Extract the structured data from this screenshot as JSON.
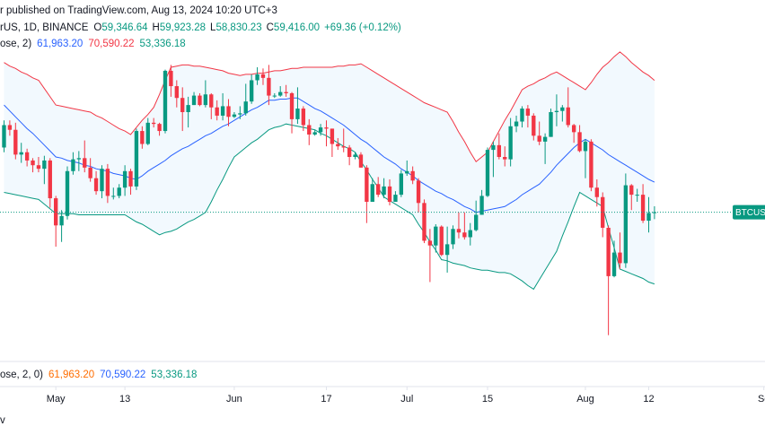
{
  "chart_data": {
    "type": "candlestick",
    "header": {
      "published": "r published on TradingView.com, Aug 13, 2024 10:20 UTC+3",
      "symbol": "rUS, 1D, BINANCE",
      "ohlc": [
        {
          "key": "O",
          "label": "59,346.64"
        },
        {
          "key": "H",
          "label": "59,923.28"
        },
        {
          "key": "L",
          "label": "58,830.23"
        },
        {
          "key": "C",
          "label": "59,416.00"
        }
      ],
      "change": "+69.36 (+0.12%)",
      "value_color": "#089981"
    },
    "indicator": {
      "text": "ose, 2)",
      "values": [
        {
          "label": "61,963.20",
          "color": "#2962ff"
        },
        {
          "label": "70,590.22",
          "color": "#f23645"
        },
        {
          "label": "53,336.18",
          "color": "#089981"
        }
      ]
    },
    "pane_label": {
      "text": "ose, 2, 0)",
      "values": [
        {
          "label": "61,963.20",
          "color": "#ff6d00"
        },
        {
          "label": "70,590.22",
          "color": "#2962ff"
        },
        {
          "label": "53,336.18",
          "color": "#089981"
        }
      ]
    },
    "price_tag": "BTCUSD",
    "footer": "v",
    "up_color": "#089981",
    "down_color": "#f23645",
    "xlim": [
      -0.7,
      132.2
    ],
    "ylim": [
      47000,
      77400
    ],
    "xticks": [
      {
        "value": 9,
        "label": "May"
      },
      {
        "value": 21,
        "label": "13"
      },
      {
        "value": 40,
        "label": "Jun"
      },
      {
        "value": 56,
        "label": "17"
      },
      {
        "value": 70,
        "label": "Jul"
      },
      {
        "value": 84,
        "label": "15"
      },
      {
        "value": 101,
        "label": "Aug"
      },
      {
        "value": 112,
        "label": "12"
      },
      {
        "value": 132,
        "label": "Se"
      }
    ],
    "open": [
      64900,
      66800,
      66400,
      64300,
      64500,
      63800,
      63400,
      63100,
      63800,
      60600,
      58300,
      59100,
      62900,
      63900,
      64000,
      63200,
      62300,
      61200,
      63100,
      60800,
      60800,
      61500,
      62900,
      61600,
      66300,
      65200,
      67000,
      66900,
      66300,
      71400,
      70100,
      69100,
      67900,
      68500,
      69300,
      68500,
      69400,
      68300,
      67600,
      68400,
      67500,
      67700,
      67800,
      68800,
      70600,
      71100,
      70800,
      69300,
      69300,
      69600,
      69500,
      67300,
      68200,
      66800,
      66000,
      66200,
      66600,
      66500,
      65200,
      65000,
      64900,
      64100,
      64300,
      63200,
      60300,
      61800,
      60900,
      61600,
      60300,
      60900,
      62700,
      62900,
      62100,
      60200,
      57000,
      56600,
      58200,
      55800,
      56700,
      58000,
      57700,
      57300,
      57900,
      59200,
      60800,
      64700,
      65100,
      64100,
      63900,
      66700,
      67100,
      68200,
      67600,
      65900,
      65400,
      65800,
      67900,
      68000,
      68300,
      66800,
      66200,
      64600,
      65400,
      61500,
      60700,
      58100,
      54000,
      56000,
      55100,
      61700,
      60900,
      60900,
      58700,
      59346.64
    ],
    "high": [
      67200,
      67200,
      67000,
      65300,
      64800,
      64000,
      64100,
      64200,
      64000,
      60800,
      59600,
      63300,
      64500,
      64600,
      65500,
      64000,
      62900,
      63400,
      63500,
      61500,
      61800,
      63400,
      63100,
      66500,
      66700,
      67400,
      67400,
      67000,
      71500,
      71900,
      70600,
      70000,
      69200,
      69600,
      69500,
      70600,
      69500,
      68900,
      69500,
      69000,
      67900,
      68400,
      70300,
      71100,
      71700,
      71600,
      71900,
      69500,
      70100,
      70200,
      69600,
      70000,
      68400,
      67300,
      66400,
      66900,
      67200,
      66500,
      65700,
      66500,
      65100,
      64500,
      64500,
      63400,
      62300,
      62400,
      62300,
      62200,
      61200,
      63000,
      63800,
      63300,
      62300,
      60500,
      58000,
      58400,
      58300,
      58200,
      58300,
      59400,
      59400,
      58500,
      60400,
      61300,
      64900,
      65400,
      66100,
      65000,
      67400,
      67600,
      68400,
      68500,
      67800,
      67100,
      66100,
      68200,
      69400,
      68500,
      70000,
      66900,
      66800,
      65600,
      65600,
      62200,
      61100,
      58300,
      57000,
      57700,
      62700,
      61800,
      61400,
      61800,
      60700,
      59923.28
    ],
    "low": [
      64500,
      65900,
      63900,
      63600,
      63300,
      62800,
      62800,
      61800,
      59800,
      56500,
      56900,
      58800,
      62600,
      62900,
      62800,
      62000,
      60900,
      60600,
      60200,
      60500,
      60600,
      60800,
      60900,
      61300,
      64800,
      65100,
      66600,
      65900,
      66100,
      69200,
      68300,
      66300,
      66600,
      68500,
      68400,
      68300,
      67300,
      67200,
      67200,
      66700,
      67400,
      67300,
      67600,
      68600,
      70200,
      70200,
      68500,
      69100,
      69200,
      69200,
      66100,
      66900,
      66300,
      65100,
      65900,
      65900,
      65000,
      64100,
      64700,
      64500,
      63400,
      63900,
      63200,
      58500,
      60300,
      60700,
      60600,
      60000,
      60300,
      60700,
      62500,
      61800,
      59400,
      56800,
      53500,
      56000,
      55700,
      54300,
      56300,
      57200,
      57100,
      56600,
      57800,
      59200,
      60700,
      62400,
      63900,
      63300,
      63300,
      66200,
      66600,
      66600,
      65500,
      65100,
      63500,
      65800,
      66700,
      67100,
      66600,
      65300,
      64500,
      62300,
      61200,
      59900,
      57300,
      49000,
      53900,
      54600,
      54700,
      59600,
      60300,
      58500,
      57700,
      58830.23
    ],
    "close": [
      66800,
      66400,
      64300,
      64500,
      63800,
      63400,
      63100,
      63800,
      60600,
      58300,
      59100,
      62900,
      63900,
      64000,
      63200,
      62300,
      61200,
      63100,
      60800,
      60800,
      61500,
      62900,
      61600,
      66300,
      65200,
      67000,
      66900,
      66300,
      71400,
      70100,
      69100,
      67900,
      68500,
      69300,
      68500,
      69400,
      68300,
      67600,
      68400,
      67500,
      67700,
      67800,
      68800,
      70600,
      71100,
      70800,
      69300,
      69300,
      69600,
      69500,
      67300,
      68200,
      66800,
      66000,
      66200,
      66600,
      66500,
      65200,
      65000,
      64900,
      64100,
      64300,
      63200,
      60300,
      61800,
      60900,
      61600,
      60300,
      60900,
      62700,
      62900,
      62100,
      60200,
      57000,
      56600,
      58200,
      55800,
      56700,
      58000,
      57700,
      57300,
      57900,
      59200,
      60800,
      64700,
      65100,
      64100,
      63900,
      66700,
      67100,
      68200,
      67600,
      65900,
      65400,
      65800,
      67900,
      68000,
      68300,
      66800,
      66200,
      64600,
      65400,
      61500,
      60700,
      58100,
      54000,
      56000,
      55100,
      61700,
      60900,
      60900,
      58700,
      59346.64,
      59416
    ],
    "band_fill": "#2196f3",
    "bands": [
      {
        "color": "#f23645",
        "values": [
          72100,
          71800,
          71600,
          71300,
          71100,
          70800,
          70600,
          69900,
          69200,
          68500,
          68400,
          68300,
          68200,
          68100,
          68000,
          67900,
          67600,
          67400,
          67100,
          66800,
          66500,
          66300,
          66000,
          66600,
          67200,
          67700,
          68300,
          69400,
          70600,
          71700,
          71800,
          71900,
          71900,
          71800,
          71800,
          71700,
          71600,
          71500,
          71400,
          71200,
          71100,
          71000,
          71100,
          71100,
          71200,
          71200,
          71300,
          71400,
          71400,
          71500,
          71600,
          71600,
          71700,
          71700,
          71700,
          71700,
          71700,
          71700,
          71800,
          71800,
          71900,
          71900,
          72000,
          71700,
          71400,
          71100,
          70800,
          70500,
          70200,
          69900,
          69600,
          69300,
          69000,
          68700,
          68500,
          68300,
          68100,
          67900,
          67100,
          66200,
          65400,
          64500,
          63700,
          64100,
          64500,
          65400,
          66300,
          67200,
          68000,
          68900,
          69800,
          70100,
          70300,
          70600,
          70800,
          71100,
          71300,
          71000,
          70700,
          70400,
          70100,
          69800,
          70400,
          71100,
          71700,
          72100,
          72600,
          73000,
          72600,
          72100,
          71700,
          71300,
          71000,
          70590.22
        ]
      },
      {
        "color": "#2962ff",
        "values": [
          68500,
          68000,
          67500,
          67000,
          66500,
          66100,
          65600,
          65100,
          64600,
          64100,
          64000,
          63800,
          63700,
          63600,
          63400,
          63300,
          63100,
          63000,
          62900,
          62700,
          62600,
          62500,
          62300,
          62200,
          62500,
          62900,
          63200,
          63500,
          63800,
          64200,
          64500,
          64800,
          65000,
          65300,
          65600,
          65900,
          66100,
          66400,
          66700,
          66900,
          67200,
          67500,
          67800,
          68100,
          68300,
          68600,
          68900,
          68900,
          69000,
          69000,
          69100,
          69100,
          68800,
          68500,
          68200,
          68000,
          67700,
          67400,
          67100,
          66800,
          66400,
          66000,
          65600,
          65300,
          64900,
          64500,
          64100,
          63800,
          63500,
          63100,
          62800,
          62500,
          62100,
          61800,
          61500,
          61200,
          61000,
          60700,
          60500,
          60200,
          59900,
          59700,
          59400,
          59500,
          59600,
          59700,
          59800,
          59900,
          60200,
          60500,
          60900,
          61200,
          61500,
          61800,
          62300,
          62800,
          63400,
          63900,
          64400,
          64900,
          65300,
          65600,
          65300,
          65000,
          64700,
          64300,
          64000,
          63700,
          63400,
          63100,
          62800,
          62500,
          62200,
          61963.2
        ]
      },
      {
        "color": "#089981",
        "values": [
          61100,
          61000,
          60900,
          60800,
          60700,
          60600,
          60500,
          60100,
          59700,
          59300,
          59300,
          59300,
          59300,
          59200,
          59200,
          59200,
          59200,
          59200,
          59200,
          59200,
          59200,
          59200,
          58900,
          58600,
          58400,
          58100,
          57800,
          57500,
          57700,
          57800,
          58000,
          58300,
          58600,
          58800,
          59100,
          59400,
          60300,
          61300,
          62200,
          63200,
          64100,
          64500,
          64900,
          65300,
          65600,
          66000,
          66400,
          66600,
          66700,
          66900,
          66800,
          66700,
          66600,
          66500,
          66400,
          66100,
          65900,
          65600,
          65300,
          65000,
          64800,
          64500,
          63700,
          63000,
          62200,
          61500,
          60700,
          60400,
          60100,
          59800,
          59500,
          59200,
          58400,
          57700,
          56900,
          56200,
          55400,
          55300,
          55100,
          55000,
          54900,
          54700,
          54600,
          54500,
          54500,
          54400,
          54300,
          54300,
          54200,
          53900,
          53600,
          53200,
          52900,
          53700,
          54500,
          55300,
          56100,
          57400,
          58600,
          59900,
          61100,
          60800,
          60500,
          60200,
          59900,
          58100,
          56400,
          54600,
          54400,
          54200,
          54000,
          53800,
          53500,
          53336.18
        ]
      }
    ]
  }
}
